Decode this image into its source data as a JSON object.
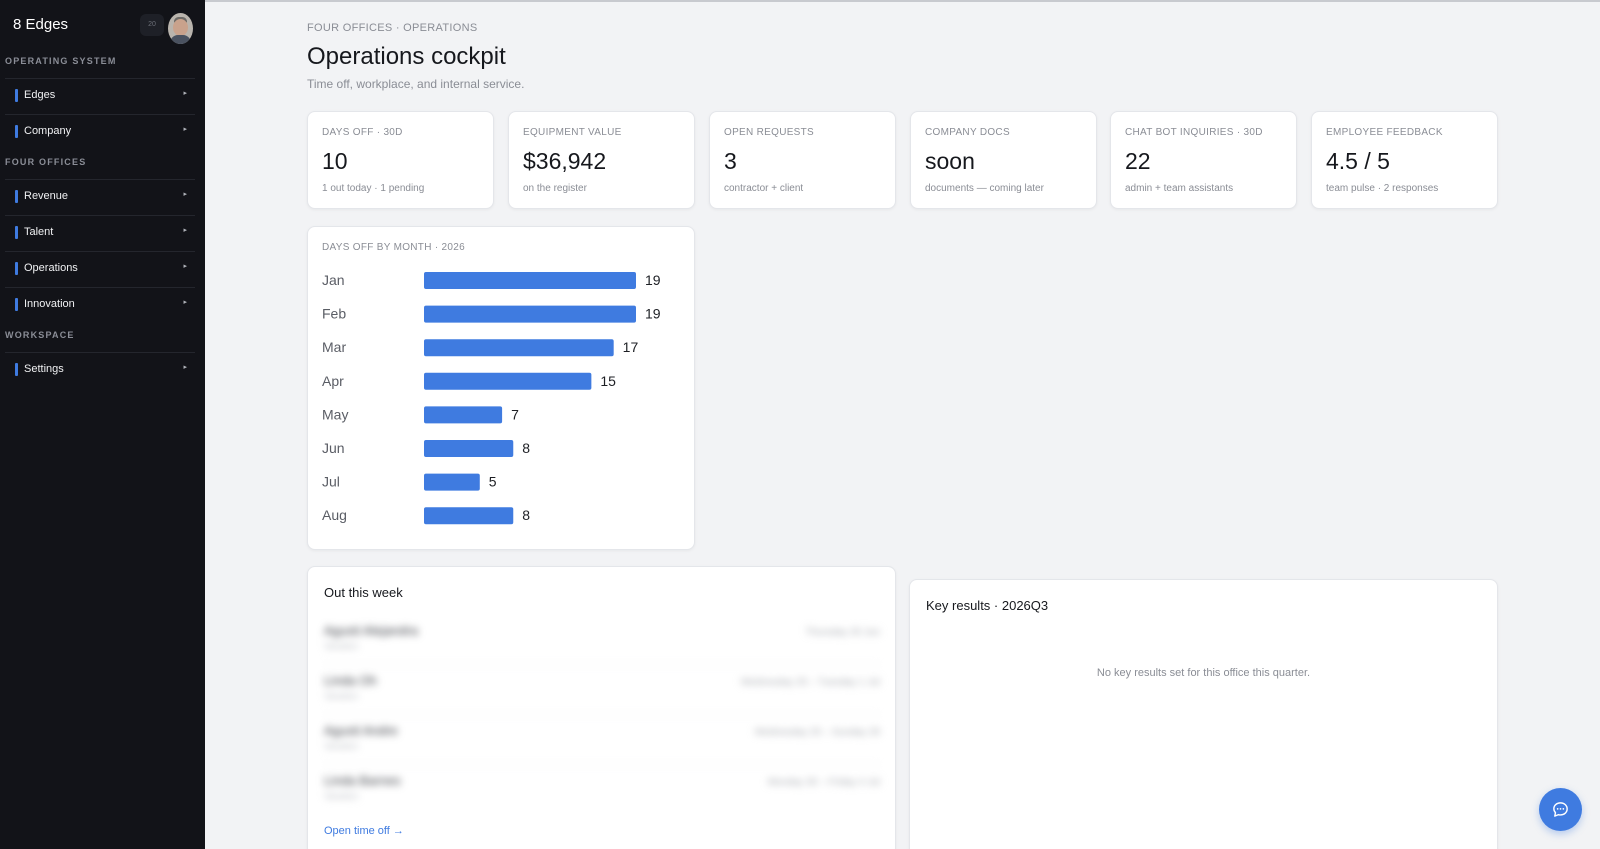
{
  "app": {
    "brand": "8 Edges",
    "header_badge": "20"
  },
  "sidebar": {
    "sections": [
      {
        "title": "OPERATING SYSTEM",
        "items": [
          {
            "label": "Edges"
          },
          {
            "label": "Company"
          }
        ]
      },
      {
        "title": "FOUR OFFICES",
        "items": [
          {
            "label": "Revenue"
          },
          {
            "label": "Talent"
          },
          {
            "label": "Operations"
          },
          {
            "label": "Innovation"
          }
        ]
      },
      {
        "title": "WORKSPACE",
        "items": [
          {
            "label": "Settings"
          }
        ]
      }
    ]
  },
  "header": {
    "breadcrumb": "FOUR OFFICES · OPERATIONS",
    "title": "Operations cockpit",
    "subtitle": "Time off, workplace, and internal service."
  },
  "kpis": [
    {
      "label": "DAYS OFF · 30D",
      "value": "10",
      "sub": "1 out today · 1 pending"
    },
    {
      "label": "EQUIPMENT VALUE",
      "value": "$36,942",
      "sub": "on the register"
    },
    {
      "label": "OPEN REQUESTS",
      "value": "3",
      "sub": "contractor + client"
    },
    {
      "label": "COMPANY DOCS",
      "value": "soon",
      "sub": "documents — coming later"
    },
    {
      "label": "CHAT BOT INQUIRIES · 30D",
      "value": "22",
      "sub": "admin + team assistants"
    },
    {
      "label": "EMPLOYEE FEEDBACK",
      "value": "4.5 / 5",
      "sub": "team pulse · 2 responses"
    }
  ],
  "chart_data": {
    "type": "bar",
    "orientation": "horizontal",
    "title": "DAYS OFF BY MONTH · 2026",
    "categories": [
      "Jan",
      "Feb",
      "Mar",
      "Apr",
      "May",
      "Jun",
      "Jul",
      "Aug"
    ],
    "values": [
      19,
      19,
      17,
      15,
      7,
      8,
      5,
      8
    ],
    "xlabel": "",
    "ylabel": "",
    "xlim": [
      0,
      19
    ],
    "grid": false,
    "bar_color": "#3f7be0"
  },
  "out_this_week": {
    "title": "Out this week",
    "rows": [
      {
        "name": "Agusti Alejandra",
        "sub": "Vacation",
        "dates": "Thursday 26 Jun"
      },
      {
        "name": "Linda Oh",
        "sub": "Vacation",
        "dates": "Wednesday 25 – Tuesday 1 Jul"
      },
      {
        "name": "Agusti Andre",
        "sub": "Vacation",
        "dates": "Wednesday 25 – Sunday 29"
      },
      {
        "name": "Linda Barnes",
        "sub": "Vacation",
        "dates": "Monday 30 – Friday 4 Jul"
      }
    ],
    "link": "Open time off →"
  },
  "key_results": {
    "title": "Key results · 2026Q3",
    "empty": "No key results set for this office this quarter."
  },
  "colors": {
    "accent": "#3f7be0",
    "sidebar_bg": "#121318",
    "page_bg": "#f2f3f5"
  }
}
